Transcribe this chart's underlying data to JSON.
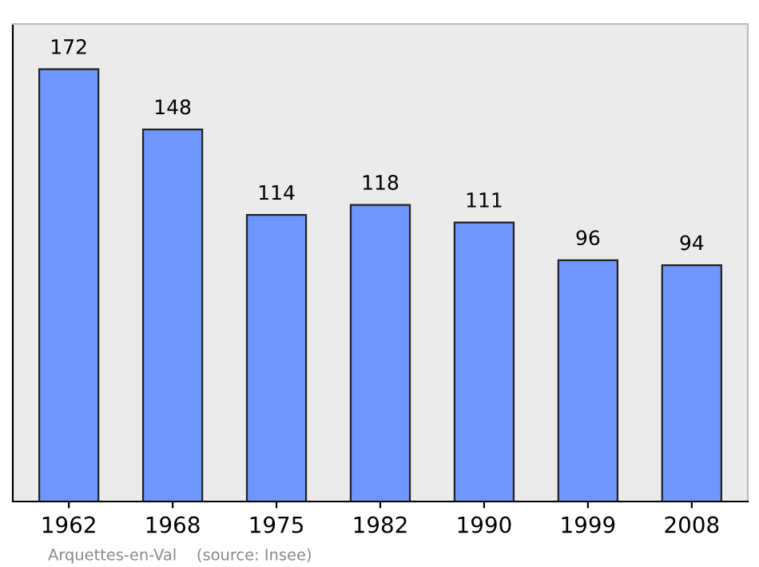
{
  "chart_data": {
    "type": "bar",
    "categories": [
      "1962",
      "1968",
      "1975",
      "1982",
      "1990",
      "1999",
      "2008"
    ],
    "values": [
      172,
      148,
      114,
      118,
      111,
      96,
      94
    ],
    "color": "#6f96ff",
    "ylim": [
      0,
      190
    ],
    "tick_labels": "x",
    "data_labels": true,
    "grid": false,
    "legend": false,
    "annotations": [
      "Arquettes-en-Val    (source: Insee)"
    ]
  }
}
